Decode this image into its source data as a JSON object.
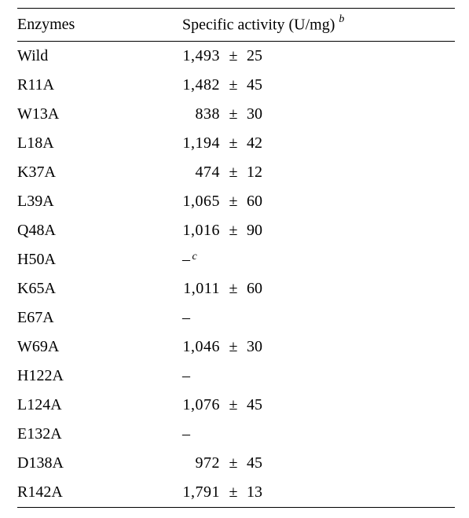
{
  "headers": {
    "enzymes": "Enzymes",
    "activity": "Specific activity (U/mg)",
    "activity_footnote": "b"
  },
  "sep_symbol": "±",
  "dash_symbol": "–",
  "rows": [
    {
      "enzyme": "Wild",
      "value": "1,493",
      "error": "25"
    },
    {
      "enzyme": "R11A",
      "value": "1,482",
      "error": "45"
    },
    {
      "enzyme": "W13A",
      "value": "838",
      "error": "30",
      "indent": true
    },
    {
      "enzyme": "L18A",
      "value": "1,194",
      "error": "42"
    },
    {
      "enzyme": "K37A",
      "value": "474",
      "error": "12",
      "indent": true
    },
    {
      "enzyme": "L39A",
      "value": "1,065",
      "error": "60"
    },
    {
      "enzyme": "Q48A",
      "value": "1,016",
      "error": "90"
    },
    {
      "enzyme": "H50A",
      "dash": true,
      "dash_footnote": "c"
    },
    {
      "enzyme": "K65A",
      "value": "1,011",
      "error": "60"
    },
    {
      "enzyme": "E67A",
      "dash": true
    },
    {
      "enzyme": "W69A",
      "value": "1,046",
      "error": "30"
    },
    {
      "enzyme": "H122A",
      "dash": true
    },
    {
      "enzyme": "L124A",
      "value": "1,076",
      "error": "45"
    },
    {
      "enzyme": "E132A",
      "dash": true
    },
    {
      "enzyme": "D138A",
      "value": "972",
      "error": "45",
      "indent": true
    },
    {
      "enzyme": "R142A",
      "value": "1,791",
      "error": "13"
    }
  ]
}
